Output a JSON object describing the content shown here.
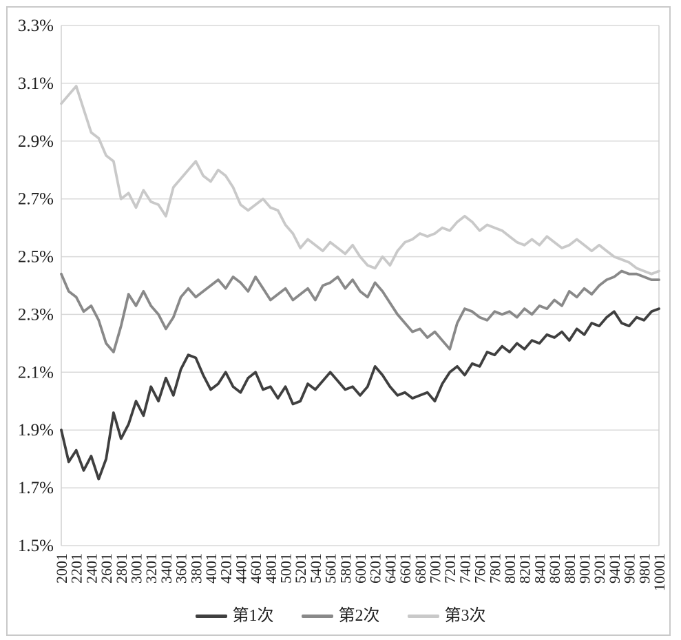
{
  "figure": {
    "background": "#ffffff",
    "outer_border_color": "#c9c9c9",
    "plot_frame_color": "#d0d0d0",
    "grid_color": "#d9d9d9",
    "text_color": "#1f1f1f"
  },
  "chart_data": {
    "type": "line",
    "title": "",
    "xlabel": "",
    "ylabel": "",
    "grid": "horizontal",
    "legend_position": "bottom",
    "xlim": [
      2001,
      10001
    ],
    "ylim": [
      1.5,
      3.3
    ],
    "x_start": 2001,
    "x_step": 100,
    "y_tick_step": 0.2,
    "y_tick_values": [
      3.3,
      3.1,
      2.9,
      2.7,
      2.5,
      2.3,
      2.1,
      1.9,
      1.7,
      1.5
    ],
    "y_tick_labels": [
      "3.3%",
      "3.1%",
      "2.9%",
      "2.7%",
      "2.5%",
      "2.3%",
      "2.1%",
      "1.9%",
      "1.7%",
      "1.5%"
    ],
    "x_tick_labels": [
      "2001",
      "2201",
      "2401",
      "2601",
      "2801",
      "3001",
      "3201",
      "3401",
      "3601",
      "3801",
      "4001",
      "4201",
      "4401",
      "4601",
      "4801",
      "5001",
      "5201",
      "5401",
      "5601",
      "5801",
      "6001",
      "6201",
      "6401",
      "6601",
      "6801",
      "7001",
      "7201",
      "7401",
      "7601",
      "7801",
      "8001",
      "8201",
      "8401",
      "8601",
      "8801",
      "9001",
      "9201",
      "9401",
      "9601",
      "9801",
      "10001"
    ],
    "series": [
      {
        "name": "第1次",
        "color": "#3f3f3f",
        "values": [
          1.9,
          1.79,
          1.83,
          1.76,
          1.81,
          1.73,
          1.8,
          1.96,
          1.87,
          1.92,
          2.0,
          1.95,
          2.05,
          2.0,
          2.08,
          2.02,
          2.11,
          2.16,
          2.15,
          2.09,
          2.04,
          2.06,
          2.1,
          2.05,
          2.03,
          2.08,
          2.1,
          2.04,
          2.05,
          2.01,
          2.05,
          1.99,
          2.0,
          2.06,
          2.04,
          2.07,
          2.1,
          2.07,
          2.04,
          2.05,
          2.02,
          2.05,
          2.12,
          2.09,
          2.05,
          2.02,
          2.03,
          2.01,
          2.02,
          2.03,
          2.0,
          2.06,
          2.1,
          2.12,
          2.09,
          2.13,
          2.12,
          2.17,
          2.16,
          2.19,
          2.17,
          2.2,
          2.18,
          2.21,
          2.2,
          2.23,
          2.22,
          2.24,
          2.21,
          2.25,
          2.23,
          2.27,
          2.26,
          2.29,
          2.31,
          2.27,
          2.26,
          2.29,
          2.28,
          2.31,
          2.32
        ]
      },
      {
        "name": "第2次",
        "color": "#898989",
        "values": [
          2.44,
          2.38,
          2.36,
          2.31,
          2.33,
          2.28,
          2.2,
          2.17,
          2.26,
          2.37,
          2.33,
          2.38,
          2.33,
          2.3,
          2.25,
          2.29,
          2.36,
          2.39,
          2.36,
          2.38,
          2.4,
          2.42,
          2.39,
          2.43,
          2.41,
          2.38,
          2.43,
          2.39,
          2.35,
          2.37,
          2.39,
          2.35,
          2.37,
          2.39,
          2.35,
          2.4,
          2.41,
          2.43,
          2.39,
          2.42,
          2.38,
          2.36,
          2.41,
          2.38,
          2.34,
          2.3,
          2.27,
          2.24,
          2.25,
          2.22,
          2.24,
          2.21,
          2.18,
          2.27,
          2.32,
          2.31,
          2.29,
          2.28,
          2.31,
          2.3,
          2.31,
          2.29,
          2.32,
          2.3,
          2.33,
          2.32,
          2.35,
          2.33,
          2.38,
          2.36,
          2.39,
          2.37,
          2.4,
          2.42,
          2.43,
          2.45,
          2.44,
          2.44,
          2.43,
          2.42,
          2.42
        ]
      },
      {
        "name": "第3次",
        "color": "#c9c9c9",
        "values": [
          3.03,
          3.06,
          3.09,
          3.01,
          2.93,
          2.91,
          2.85,
          2.83,
          2.7,
          2.72,
          2.67,
          2.73,
          2.69,
          2.68,
          2.64,
          2.74,
          2.77,
          2.8,
          2.83,
          2.78,
          2.76,
          2.8,
          2.78,
          2.74,
          2.68,
          2.66,
          2.68,
          2.7,
          2.67,
          2.66,
          2.61,
          2.58,
          2.53,
          2.56,
          2.54,
          2.52,
          2.55,
          2.53,
          2.51,
          2.54,
          2.5,
          2.47,
          2.46,
          2.5,
          2.47,
          2.52,
          2.55,
          2.56,
          2.58,
          2.57,
          2.58,
          2.6,
          2.59,
          2.62,
          2.64,
          2.62,
          2.59,
          2.61,
          2.6,
          2.59,
          2.57,
          2.55,
          2.54,
          2.56,
          2.54,
          2.57,
          2.55,
          2.53,
          2.54,
          2.56,
          2.54,
          2.52,
          2.54,
          2.52,
          2.5,
          2.49,
          2.48,
          2.46,
          2.45,
          2.44,
          2.45
        ]
      }
    ]
  }
}
